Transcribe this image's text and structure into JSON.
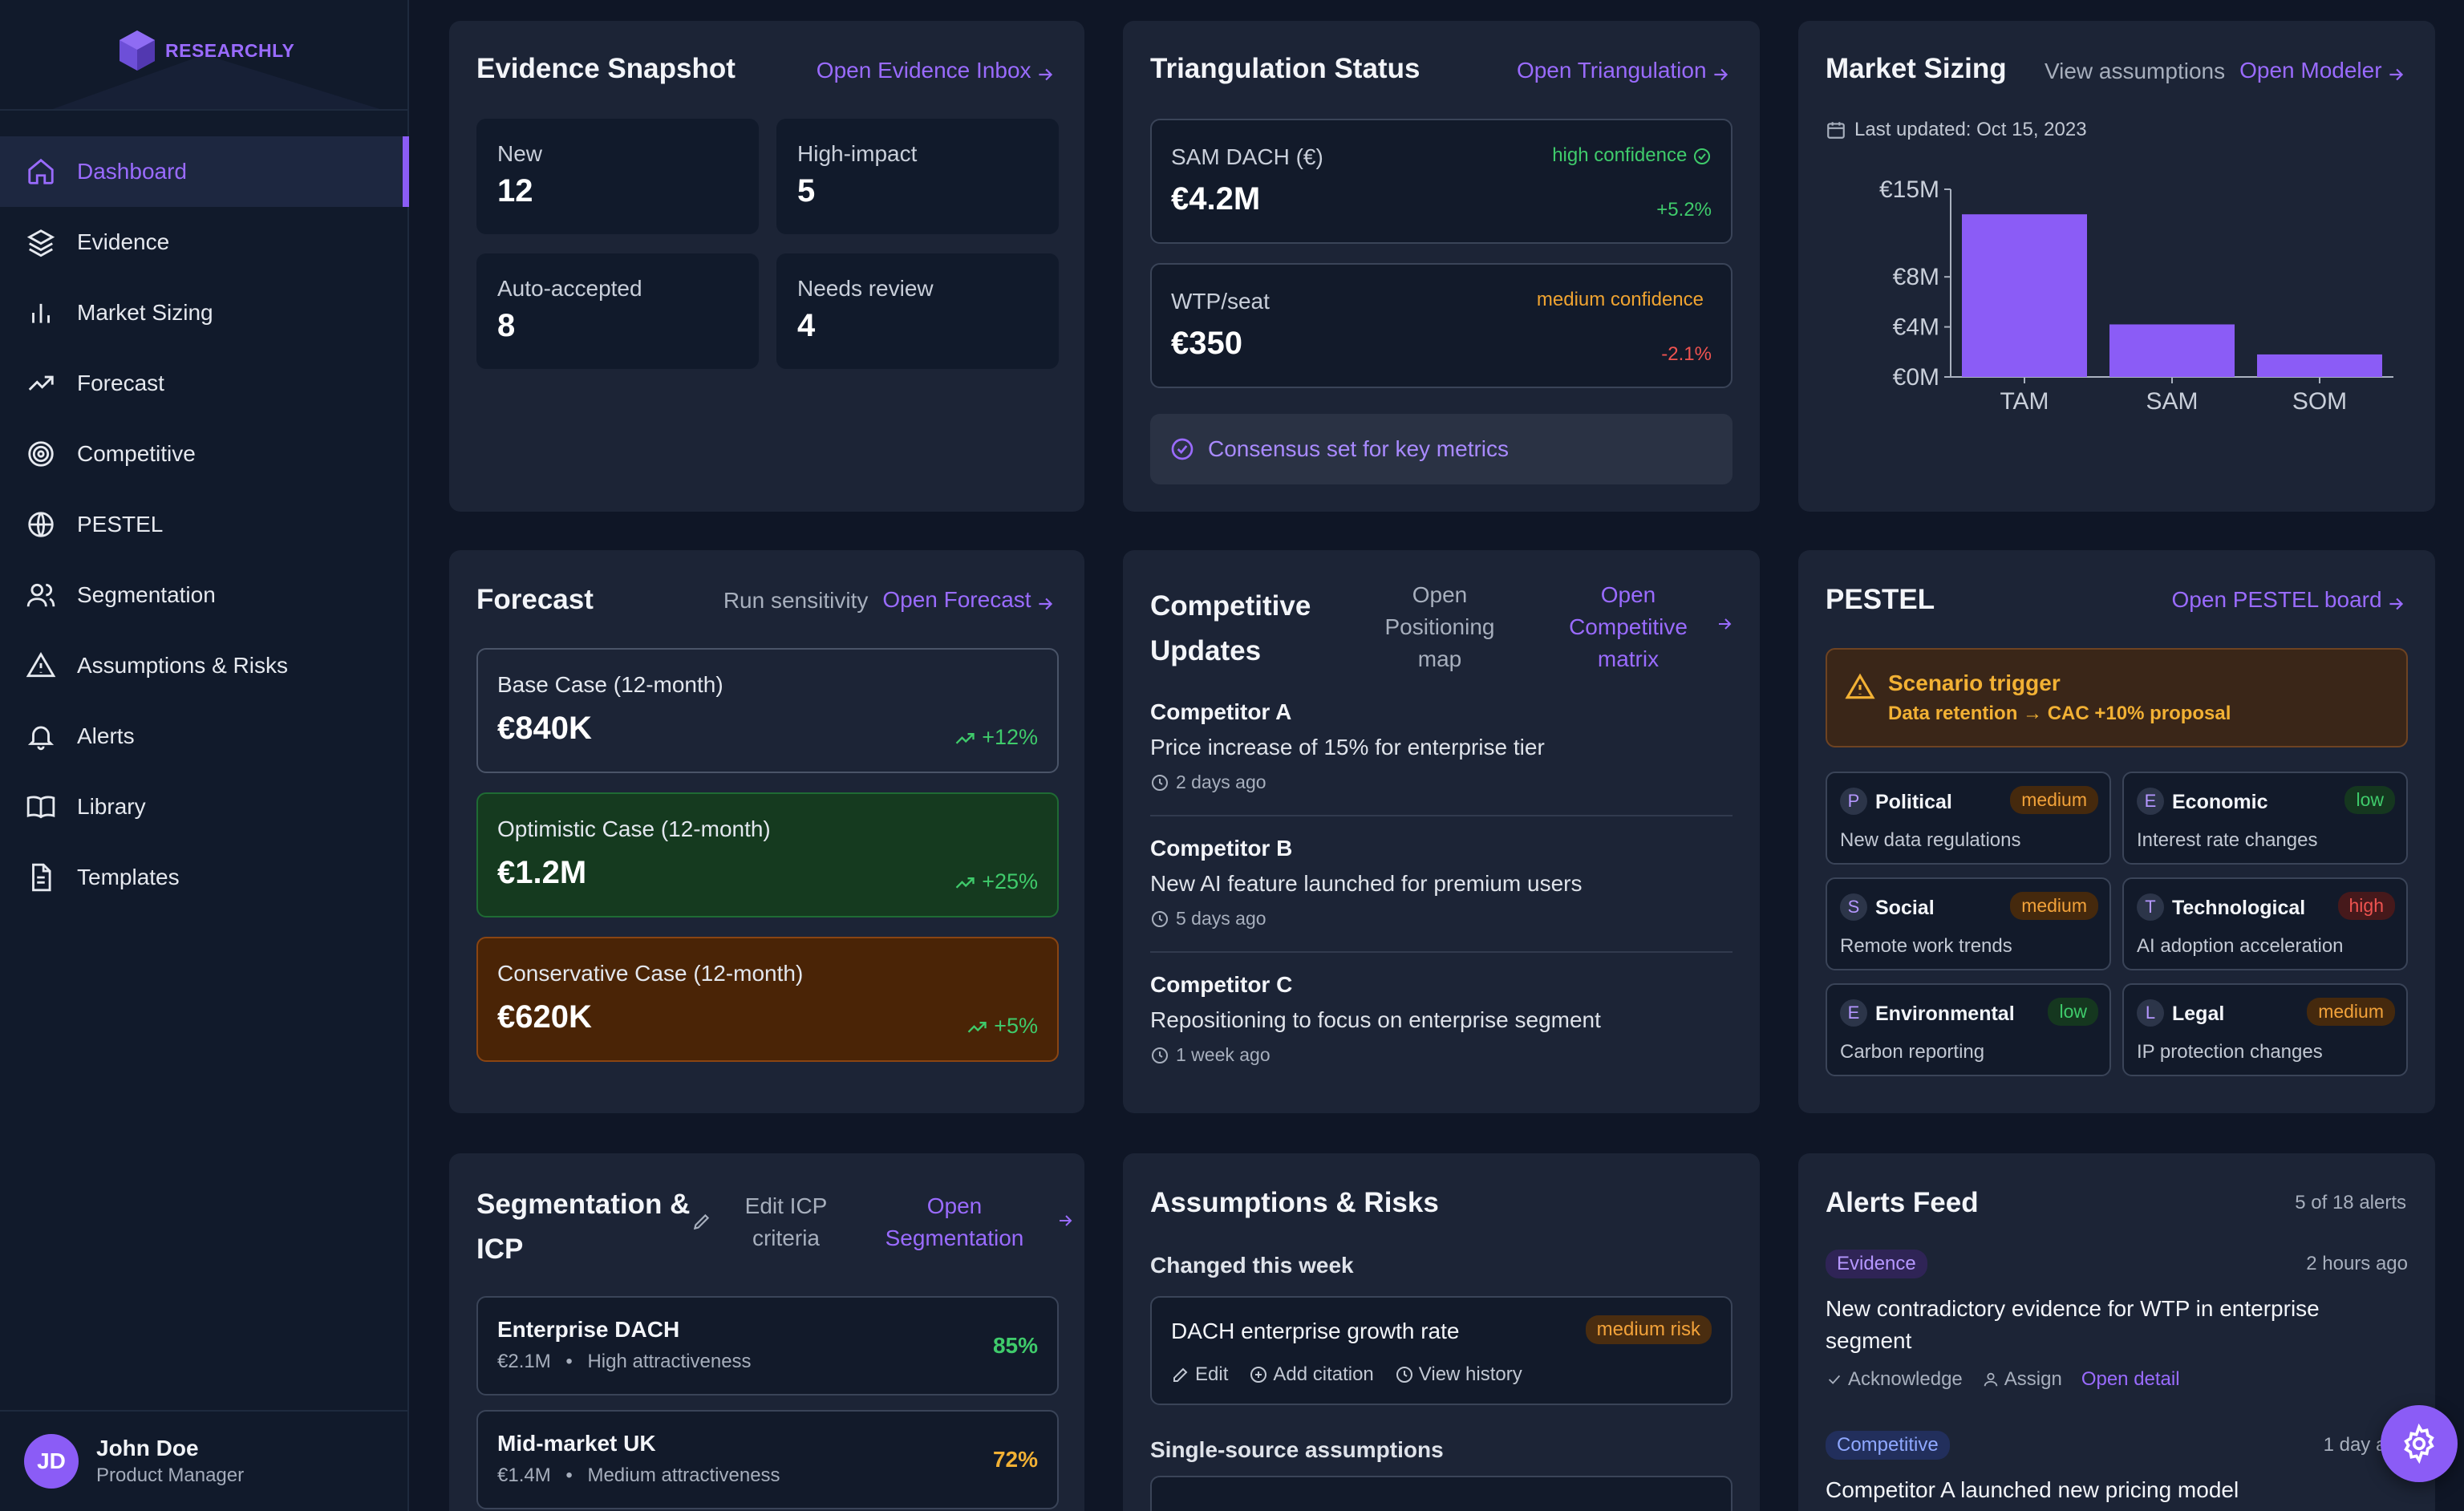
{
  "brand": {
    "name": "RESEARCHLY"
  },
  "nav": [
    {
      "label": "Dashboard",
      "icon": "home-icon",
      "active": true
    },
    {
      "label": "Evidence",
      "icon": "layers-icon"
    },
    {
      "label": "Market Sizing",
      "icon": "bar-chart-icon"
    },
    {
      "label": "Forecast",
      "icon": "trending-up-icon"
    },
    {
      "label": "Competitive",
      "icon": "target-icon"
    },
    {
      "label": "PESTEL",
      "icon": "globe-icon"
    },
    {
      "label": "Segmentation",
      "icon": "users-icon"
    },
    {
      "label": "Assumptions & Risks",
      "icon": "warning-icon"
    },
    {
      "label": "Alerts",
      "icon": "bell-icon"
    },
    {
      "label": "Library",
      "icon": "book-icon"
    },
    {
      "label": "Templates",
      "icon": "file-icon"
    }
  ],
  "user": {
    "initials": "JD",
    "name": "John Doe",
    "role": "Product Manager"
  },
  "evidence": {
    "title": "Evidence Snapshot",
    "link": "Open Evidence Inbox",
    "stats": [
      {
        "label": "New",
        "value": "12"
      },
      {
        "label": "High-impact",
        "value": "5"
      },
      {
        "label": "Auto-accepted",
        "value": "8"
      },
      {
        "label": "Needs review",
        "value": "4"
      }
    ]
  },
  "triangulation": {
    "title": "Triangulation Status",
    "link": "Open Triangulation",
    "metrics": [
      {
        "label": "SAM DACH (€)",
        "value": "€4.2M",
        "confidence": "high confidence",
        "delta": "+5.2%"
      },
      {
        "label": "WTP/seat",
        "value": "€350",
        "confidence": "medium confidence",
        "delta": "-2.1%"
      }
    ],
    "consensus": "Consensus set for key metrics"
  },
  "market": {
    "title": "Market Sizing",
    "view_link": "View assumptions",
    "link": "Open Modeler",
    "updated": "Last updated: Oct 15, 2023",
    "accent": "#8b5cf6"
  },
  "chart_data": {
    "type": "bar",
    "categories": [
      "TAM",
      "SAM",
      "SOM"
    ],
    "values": [
      13,
      4.2,
      1.8
    ],
    "yticks": [
      "€0M",
      "€4M",
      "€8M",
      "€15M"
    ],
    "ytick_values": [
      0,
      4,
      8,
      15
    ],
    "ylim": [
      0,
      15
    ],
    "title": "",
    "xlabel": "",
    "ylabel": ""
  },
  "forecast": {
    "title": "Forecast",
    "sensitivity": "Run sensitivity",
    "link": "Open Forecast",
    "cases": [
      {
        "label": "Base Case (12-month)",
        "value": "€840K",
        "delta": "+12%"
      },
      {
        "label": "Optimistic Case (12-month)",
        "value": "€1.2M",
        "delta": "+25%"
      },
      {
        "label": "Conservative Case (12-month)",
        "value": "€620K",
        "delta": "+5%"
      }
    ]
  },
  "competitive": {
    "title": "Competitive Updates",
    "positioning_link": "Open Positioning map",
    "matrix_link": "Open Competitive matrix",
    "items": [
      {
        "name": "Competitor A",
        "text": "Price increase of 15% for enterprise tier",
        "time": "2 days ago"
      },
      {
        "name": "Competitor B",
        "text": "New AI feature launched for premium users",
        "time": "5 days ago"
      },
      {
        "name": "Competitor C",
        "text": "Repositioning to focus on enterprise segment",
        "time": "1 week ago"
      }
    ]
  },
  "pestel": {
    "title": "PESTEL",
    "link": "Open PESTEL board",
    "trigger_title": "Scenario trigger",
    "trigger_text": "Data retention → CAC +10% proposal",
    "factors": [
      {
        "letter": "P",
        "name": "Political",
        "level": "medium",
        "text": "New data regulations"
      },
      {
        "letter": "E",
        "name": "Economic",
        "level": "low",
        "text": "Interest rate changes"
      },
      {
        "letter": "S",
        "name": "Social",
        "level": "medium",
        "text": "Remote work trends"
      },
      {
        "letter": "T",
        "name": "Technological",
        "level": "high",
        "text": "AI adoption acceleration"
      },
      {
        "letter": "E",
        "name": "Environmental",
        "level": "low",
        "text": "Carbon reporting"
      },
      {
        "letter": "L",
        "name": "Legal",
        "level": "medium",
        "text": "IP protection changes"
      }
    ]
  },
  "segmentation": {
    "title": "Segmentation & ICP",
    "edit_link": "Edit ICP criteria",
    "link": "Open Segmentation",
    "segments": [
      {
        "name": "Enterprise DACH",
        "size": "€2.1M",
        "attract": "High attractiveness",
        "score": "85%"
      },
      {
        "name": "Mid-market UK",
        "size": "€1.4M",
        "attract": "Medium attractiveness",
        "score": "72%"
      }
    ]
  },
  "assumptions": {
    "title": "Assumptions & Risks",
    "changed_label": "Changed this week",
    "item_name": "DACH enterprise growth rate",
    "item_risk": "medium risk",
    "actions": [
      "Edit",
      "Add citation",
      "View history"
    ],
    "single_label": "Single-source assumptions"
  },
  "alerts": {
    "title": "Alerts Feed",
    "count": "5 of 18 alerts",
    "items": [
      {
        "tag": "Evidence",
        "time": "2 hours ago",
        "text": "New contradictory evidence for WTP in enterprise segment",
        "actions": [
          "Acknowledge",
          "Assign",
          "Open detail"
        ]
      },
      {
        "tag": "Competitive",
        "time": "1 day ago",
        "text": "Competitor A launched new pricing model"
      }
    ]
  }
}
